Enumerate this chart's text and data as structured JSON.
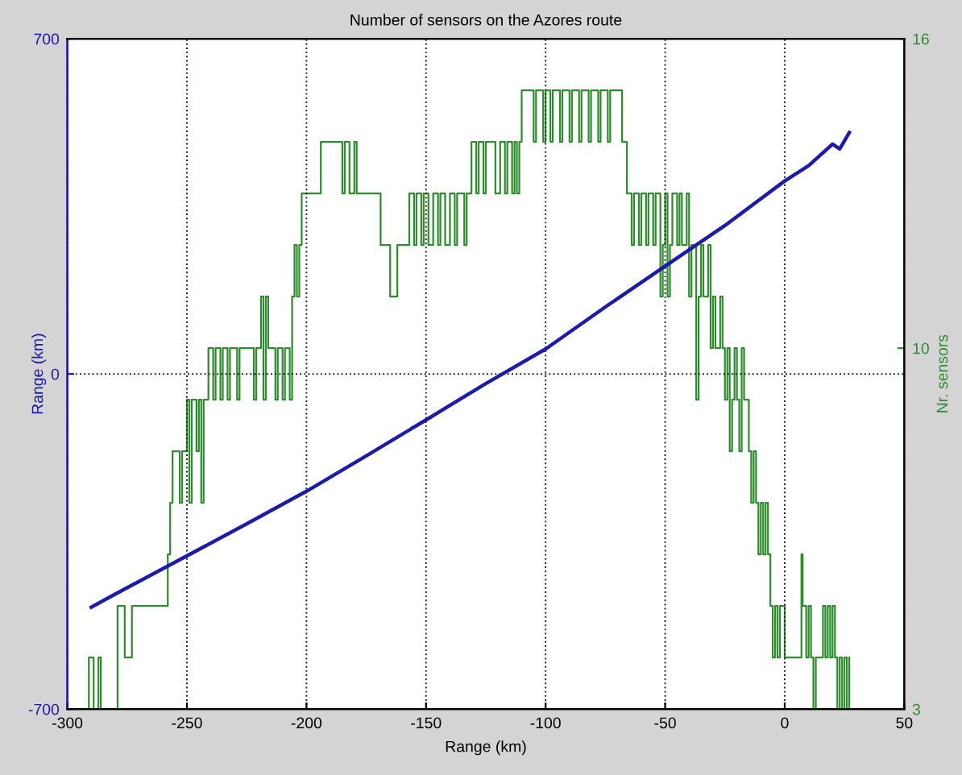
{
  "chart_data": {
    "type": "line",
    "title": "Number of sensors on the Azores route",
    "xlabel": "Range (km)",
    "ylabel": "Range (km)",
    "y2label": "Nr. sensors",
    "xlim": [
      -300,
      50
    ],
    "xticks": [
      -300,
      -250,
      -200,
      -150,
      -100,
      -50,
      0,
      50
    ],
    "ylim": [
      -700,
      700
    ],
    "yticks": [
      -700,
      0,
      700
    ],
    "y2lim": [
      3,
      16
    ],
    "y2ticks": [
      3,
      10,
      16
    ],
    "grid": true,
    "series": [
      {
        "axis": "y",
        "color": "#1c1ca8",
        "x": [
          -290,
          -280,
          -250,
          -225,
          -200,
          -175,
          -150,
          -125,
          -100,
          -75,
          -50,
          -25,
          0,
          10,
          20,
          23,
          27
        ],
        "values": [
          -487,
          -460,
          -380,
          -313,
          -245,
          -171,
          -96,
          -20,
          52,
          140,
          225,
          310,
          403,
          435,
          480,
          470,
          504
        ]
      },
      {
        "type": "step",
        "axis": "y2",
        "color": "#2e8b2e",
        "x": [
          -292,
          -291,
          -289,
          -287,
          -286,
          -279,
          -276,
          -273,
          -258,
          -257,
          -256,
          -253,
          -252,
          -250,
          -249,
          -248,
          -246,
          -245,
          -244,
          -243,
          -241,
          -239,
          -238,
          -236,
          -235,
          -233,
          -232,
          -229,
          -228,
          -222,
          -221,
          -219,
          -218,
          -217,
          -216,
          -213,
          -212,
          -210,
          -209,
          -207,
          -206,
          -205,
          -204,
          -203,
          -202,
          -194,
          -185,
          -184,
          -182,
          -180,
          -179,
          -169,
          -165,
          -162,
          -157,
          -155,
          -154,
          -152,
          -151,
          -149,
          -147,
          -145,
          -144,
          -142,
          -140,
          -138,
          -137,
          -134,
          -133,
          -131,
          -129,
          -128,
          -126,
          -125,
          -121,
          -119,
          -117,
          -116,
          -114,
          -113,
          -112,
          -111,
          -110,
          -107,
          -105,
          -104,
          -101,
          -100,
          -98,
          -97,
          -94,
          -93,
          -90,
          -89,
          -86,
          -85,
          -82,
          -81,
          -78,
          -77,
          -74,
          -73,
          -68,
          -66,
          -64,
          -63,
          -61,
          -60,
          -58,
          -57,
          -55,
          -54,
          -52,
          -51,
          -50,
          -49,
          -48,
          -47,
          -45,
          -44,
          -43,
          -41,
          -40,
          -39,
          -37,
          -36,
          -35,
          -34,
          -32,
          -31,
          -30,
          -29,
          -27,
          -26,
          -25,
          -24,
          -23,
          -22,
          -21,
          -20,
          -19,
          -18,
          -17,
          -15,
          -14,
          -13,
          -12,
          -11,
          -10,
          -9,
          -8,
          -7,
          -6,
          -5,
          -4,
          -3,
          -2,
          0,
          7,
          7.5,
          9,
          10,
          11,
          12,
          13,
          16,
          17,
          18,
          19,
          20,
          21,
          22,
          23,
          24,
          25,
          26,
          27
        ],
        "values": [
          3,
          4,
          3,
          4,
          3,
          5,
          4,
          5,
          6,
          7,
          8,
          7,
          8,
          9,
          7,
          9,
          8,
          9,
          7,
          9,
          10,
          9,
          10,
          9,
          10,
          9,
          10,
          9,
          10,
          9,
          10,
          11,
          9,
          11,
          10,
          9,
          10,
          9,
          10,
          9,
          11,
          12,
          11,
          12,
          13,
          14,
          13,
          14,
          13,
          14,
          13,
          12,
          11,
          12,
          13,
          12,
          13,
          12,
          13,
          12,
          13,
          12,
          13,
          12,
          13,
          12,
          13,
          12,
          13,
          14,
          13,
          14,
          13,
          14,
          13,
          14,
          13,
          14,
          13,
          14,
          13,
          14,
          15,
          15,
          14,
          15,
          14,
          15,
          14,
          15,
          14,
          15,
          14,
          15,
          14,
          15,
          14,
          15,
          14,
          15,
          14,
          15,
          14,
          13,
          12,
          13,
          12,
          13,
          12,
          13,
          12,
          13,
          11,
          12,
          13,
          11,
          12,
          13,
          12,
          13,
          12,
          13,
          11,
          12,
          9,
          11,
          12,
          11,
          12,
          10,
          11,
          10,
          11,
          10,
          9,
          10,
          8,
          9,
          10,
          9,
          8,
          10,
          9,
          8,
          7,
          8,
          7,
          6,
          7,
          6,
          7,
          6,
          5,
          4,
          5,
          4,
          5,
          4,
          6,
          5,
          4,
          5,
          4,
          3,
          4,
          5,
          4,
          5,
          4,
          5,
          4,
          3,
          4,
          3,
          4,
          3,
          4
        ]
      }
    ]
  }
}
